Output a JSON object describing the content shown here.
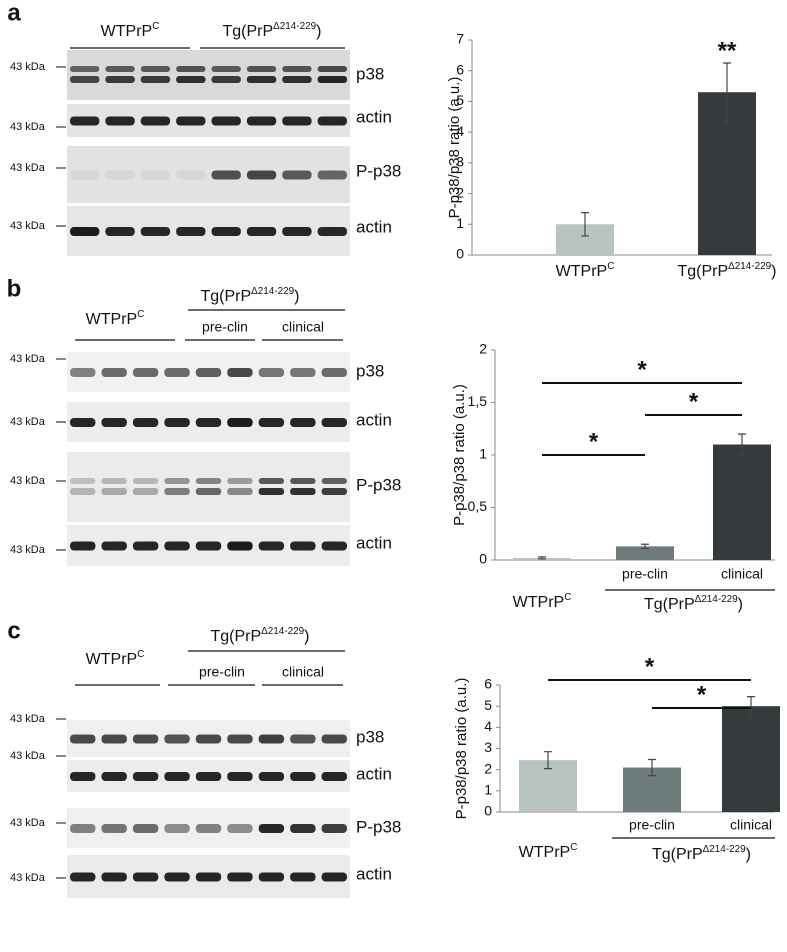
{
  "panels": [
    {
      "letter": "a",
      "blot": {
        "groups": [
          {
            "base": "WTPrP",
            "sup": "C"
          },
          {
            "base": "Tg(PrP",
            "sup": "Δ214-229",
            "tail": ")"
          }
        ],
        "rows": [
          {
            "marker": "43 kDa",
            "name": "p38"
          },
          {
            "marker": "43 kDa",
            "name": "actin"
          },
          {
            "marker": "43 kDa",
            "name": "P-p38"
          },
          {
            "marker": "43 kDa",
            "name": "actin"
          }
        ]
      }
    },
    {
      "letter": "b",
      "blot": {
        "groups": [
          {
            "base": "WTPrP",
            "sup": "C"
          },
          {
            "base": "Tg(PrP",
            "sup": "Δ214-229",
            "tail": ")"
          }
        ],
        "subgroups": [
          "pre-clin",
          "clinical"
        ],
        "rows": [
          {
            "marker": "43 kDa",
            "name": "p38"
          },
          {
            "marker": "43 kDa",
            "name": "actin"
          },
          {
            "marker": "43 kDa",
            "name": "P-p38"
          },
          {
            "marker": "43 kDa",
            "name": "actin"
          }
        ]
      }
    },
    {
      "letter": "c",
      "blot": {
        "groups": [
          {
            "base": "WTPrP",
            "sup": "C"
          },
          {
            "base": "Tg(PrP",
            "sup": "Δ214-229",
            "tail": ")"
          }
        ],
        "subgroups": [
          "pre-clin",
          "clinical"
        ],
        "rows": [
          {
            "marker": "43 kDa",
            "name": "p38"
          },
          {
            "marker": "43 kDa",
            "name": "actin"
          },
          {
            "marker": "43 kDa",
            "name": "P-p38"
          },
          {
            "marker": "43 kDa",
            "name": "actin"
          }
        ]
      }
    }
  ],
  "chart_data": [
    {
      "type": "bar",
      "y_label": "P-p38/p38 ratio (a.u.)",
      "categories": [
        {
          "base": "WTPrP",
          "sup": "C"
        },
        {
          "base": "Tg(PrP",
          "sup": "Δ214-229",
          "tail": ")"
        }
      ],
      "values": [
        1.0,
        5.3
      ],
      "errors": [
        0.38,
        0.95
      ],
      "colors": [
        "#b9c4c1",
        "#353b3c"
      ],
      "ylim": [
        0,
        7
      ],
      "yticks": [
        0,
        1,
        2,
        3,
        4,
        5,
        6,
        7
      ],
      "annotations": [
        "**"
      ]
    },
    {
      "type": "bar",
      "y_label": "P-p38/p38 ratio (a.u.)",
      "categories": [
        null,
        "pre-clin",
        "clinical"
      ],
      "groups": [
        {
          "base": "WTPrP",
          "sup": "C"
        },
        {
          "base": "Tg(PrP",
          "sup": "Δ214-229",
          "tail": ")"
        }
      ],
      "values": [
        0.02,
        0.13,
        1.1
      ],
      "errors": [
        0.01,
        0.02,
        0.1
      ],
      "colors": [
        "#b9c4c1",
        "#6e7b7b",
        "#353b3c"
      ],
      "ylim": [
        0,
        2
      ],
      "yticks": [
        0,
        {
          "value": 0.5,
          "label": "0,5"
        },
        1,
        {
          "value": 1.5,
          "label": "1,5"
        },
        2
      ],
      "annotations": [
        "*",
        "*",
        "*"
      ]
    },
    {
      "type": "bar",
      "y_label": "P-p38/p38 ratio (a.u.)",
      "categories": [
        null,
        "pre-clin",
        "clinical"
      ],
      "groups": [
        {
          "base": "WTPrP",
          "sup": "C"
        },
        {
          "base": "Tg(PrP",
          "sup": "Δ214-229",
          "tail": ")"
        }
      ],
      "values": [
        2.45,
        2.1,
        5.0
      ],
      "errors": [
        0.4,
        0.38,
        0.45
      ],
      "colors": [
        "#b9c4c1",
        "#6e7b7b",
        "#353b3c"
      ],
      "ylim": [
        0,
        6
      ],
      "yticks": [
        0,
        1,
        2,
        3,
        4,
        5,
        6
      ],
      "annotations": [
        "*",
        "*"
      ]
    }
  ]
}
